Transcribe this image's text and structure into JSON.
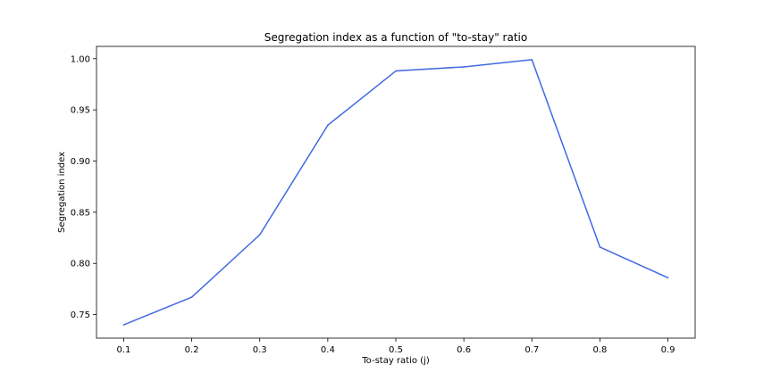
{
  "chart_data": {
    "type": "line",
    "title": "Segregation index as a function of \"to-stay\" ratio",
    "xlabel": "To-stay ratio (j)",
    "ylabel": "Segregation index",
    "x": [
      0.1,
      0.2,
      0.3,
      0.4,
      0.5,
      0.6,
      0.7,
      0.8,
      0.9
    ],
    "series": [
      {
        "values": [
          0.74,
          0.767,
          0.828,
          0.935,
          0.988,
          0.992,
          0.999,
          0.816,
          0.786
        ],
        "color": "#4169e1"
      }
    ],
    "xticks": [
      "0.1",
      "0.2",
      "0.3",
      "0.4",
      "0.5",
      "0.6",
      "0.7",
      "0.8",
      "0.9"
    ],
    "yticks": [
      "0.75",
      "0.80",
      "0.85",
      "0.90",
      "0.95",
      "1.00"
    ],
    "xlim": [
      0.06,
      0.94
    ],
    "ylim": [
      0.727,
      1.012
    ],
    "grid": false
  }
}
